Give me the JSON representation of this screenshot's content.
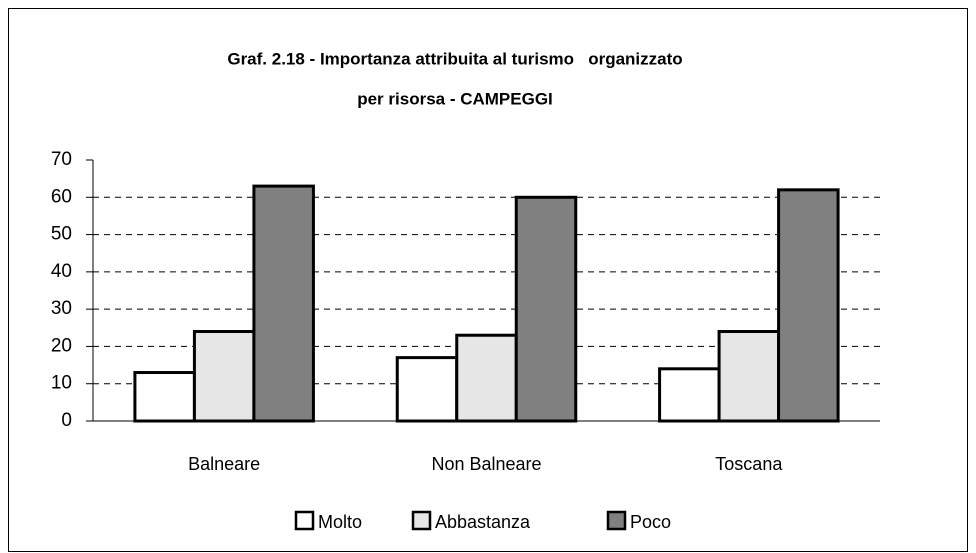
{
  "chart_data": {
    "type": "bar",
    "title": "Graf. 2.18 - Importanza attribuita al turismo   organizzato",
    "subtitle": "per risorsa - CAMPEGGI",
    "categories": [
      "Balneare",
      "Non Balneare",
      "Toscana"
    ],
    "series": [
      {
        "name": "Molto",
        "color": "#ffffff",
        "values": [
          13,
          17,
          14
        ]
      },
      {
        "name": "Abbastanza",
        "color": "#e6e6e6",
        "values": [
          24,
          23,
          24
        ]
      },
      {
        "name": "Poco",
        "color": "#808080",
        "values": [
          63,
          60,
          62
        ]
      }
    ],
    "ylim": [
      0,
      70
    ],
    "yticks": [
      0,
      10,
      20,
      30,
      40,
      50,
      60,
      70
    ],
    "grid": true,
    "legend": "bottom"
  }
}
